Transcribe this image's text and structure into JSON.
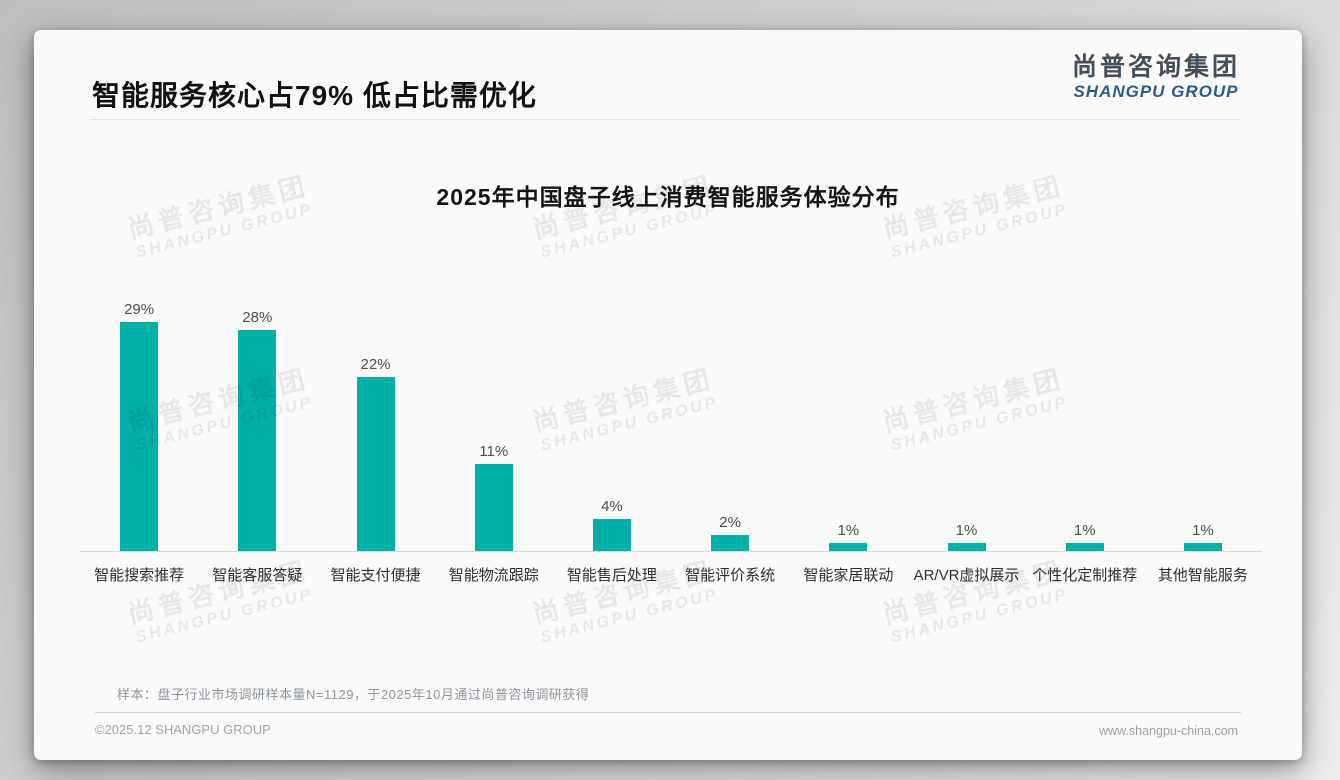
{
  "page": {
    "title": "智能服务核心占79% 低占比需优化",
    "logo": {
      "cn": "尚普咨询集团",
      "en": "SHANGPU GROUP"
    },
    "watermark": {
      "cn": "尚普咨询集团",
      "en": "SHANGPU GROUP"
    },
    "footnote": "样本：盘子行业市场调研样本量N=1129，于2025年10月通过尚普咨询调研获得",
    "footer_left": "©2025.12 SHANGPU GROUP",
    "footer_right": "www.shangpu-china.com"
  },
  "chart_data": {
    "type": "bar",
    "title": "2025年中国盘子线上消费智能服务体验分布",
    "categories": [
      "智能搜索推荐",
      "智能客服答疑",
      "智能支付便捷",
      "智能物流跟踪",
      "智能售后处理",
      "智能评价系统",
      "智能家居联动",
      "AR/VR虚拟展示",
      "个性化定制推荐",
      "其他智能服务"
    ],
    "values": [
      29,
      28,
      22,
      11,
      4,
      2,
      1,
      1,
      1,
      1
    ],
    "value_labels": [
      "29%",
      "28%",
      "22%",
      "11%",
      "4%",
      "2%",
      "1%",
      "1%",
      "1%",
      "1%"
    ],
    "bar_color": "#00AFA6",
    "xlabel": "",
    "ylabel": "",
    "ylim": [
      0,
      30
    ],
    "grid": false,
    "legend": null
  }
}
